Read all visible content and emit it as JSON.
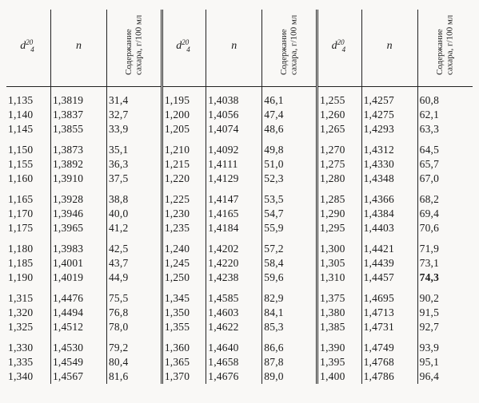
{
  "headers": {
    "d": "d",
    "d_sup": "20",
    "d_sub": "4",
    "n": "n",
    "sugar": "Содержание сахара, г/100 мл"
  },
  "blocks": [
    [
      [
        "1,135",
        "1,3819",
        "31,4",
        "1,195",
        "1,4038",
        "46,1",
        "1,255",
        "1,4257",
        "60,8"
      ],
      [
        "1,140",
        "1,3837",
        "32,7",
        "1,200",
        "1,4056",
        "47,4",
        "1,260",
        "1,4275",
        "62,1"
      ],
      [
        "1,145",
        "1,3855",
        "33,9",
        "1,205",
        "1,4074",
        "48,6",
        "1,265",
        "1,4293",
        "63,3"
      ]
    ],
    [
      [
        "1,150",
        "1,3873",
        "35,1",
        "1,210",
        "1,4092",
        "49,8",
        "1,270",
        "1,4312",
        "64,5"
      ],
      [
        "1,155",
        "1,3892",
        "36,3",
        "1,215",
        "1,4111",
        "51,0",
        "1,275",
        "1,4330",
        "65,7"
      ],
      [
        "1,160",
        "1,3910",
        "37,5",
        "1,220",
        "1,4129",
        "52,3",
        "1,280",
        "1,4348",
        "67,0"
      ]
    ],
    [
      [
        "1,165",
        "1,3928",
        "38,8",
        "1,225",
        "1,4147",
        "53,5",
        "1,285",
        "1,4366",
        "68,2"
      ],
      [
        "1,170",
        "1,3946",
        "40,0",
        "1,230",
        "1,4165",
        "54,7",
        "1,290",
        "1,4384",
        "69,4"
      ],
      [
        "1,175",
        "1,3965",
        "41,2",
        "1,235",
        "1,4184",
        "55,9",
        "1,295",
        "1,4403",
        "70,6"
      ]
    ],
    [
      [
        "1,180",
        "1,3983",
        "42,5",
        "1,240",
        "1,4202",
        "57,2",
        "1,300",
        "1,4421",
        "71,9"
      ],
      [
        "1,185",
        "1,4001",
        "43,7",
        "1,245",
        "1,4220",
        "58,4",
        "1,305",
        "1,4439",
        "73,1"
      ],
      [
        "1,190",
        "1,4019",
        "44,9",
        "1,250",
        "1,4238",
        "59,6",
        "1,310",
        "1,4457",
        "74,3"
      ]
    ],
    [
      [
        "1,315",
        "1,4476",
        "75,5",
        "1,345",
        "1,4585",
        "82,9",
        "1,375",
        "1,4695",
        "90,2"
      ],
      [
        "1,320",
        "1,4494",
        "76,8",
        "1,350",
        "1,4603",
        "84,1",
        "1,380",
        "1,4713",
        "91,5"
      ],
      [
        "1,325",
        "1,4512",
        "78,0",
        "1,355",
        "1,4622",
        "85,3",
        "1,385",
        "1,4731",
        "92,7"
      ]
    ],
    [
      [
        "1,330",
        "1,4530",
        "79,2",
        "1,360",
        "1,4640",
        "86,6",
        "1,390",
        "1,4749",
        "93,9"
      ],
      [
        "1,335",
        "1,4549",
        "80,4",
        "1,365",
        "1,4658",
        "87,8",
        "1,395",
        "1,4768",
        "95,1"
      ],
      [
        "1,340",
        "1,4567",
        "81,6",
        "1,370",
        "1,4676",
        "89,0",
        "1,400",
        "1,4786",
        "96,4"
      ]
    ]
  ],
  "bold_cells": [
    [
      3,
      2,
      8
    ]
  ]
}
